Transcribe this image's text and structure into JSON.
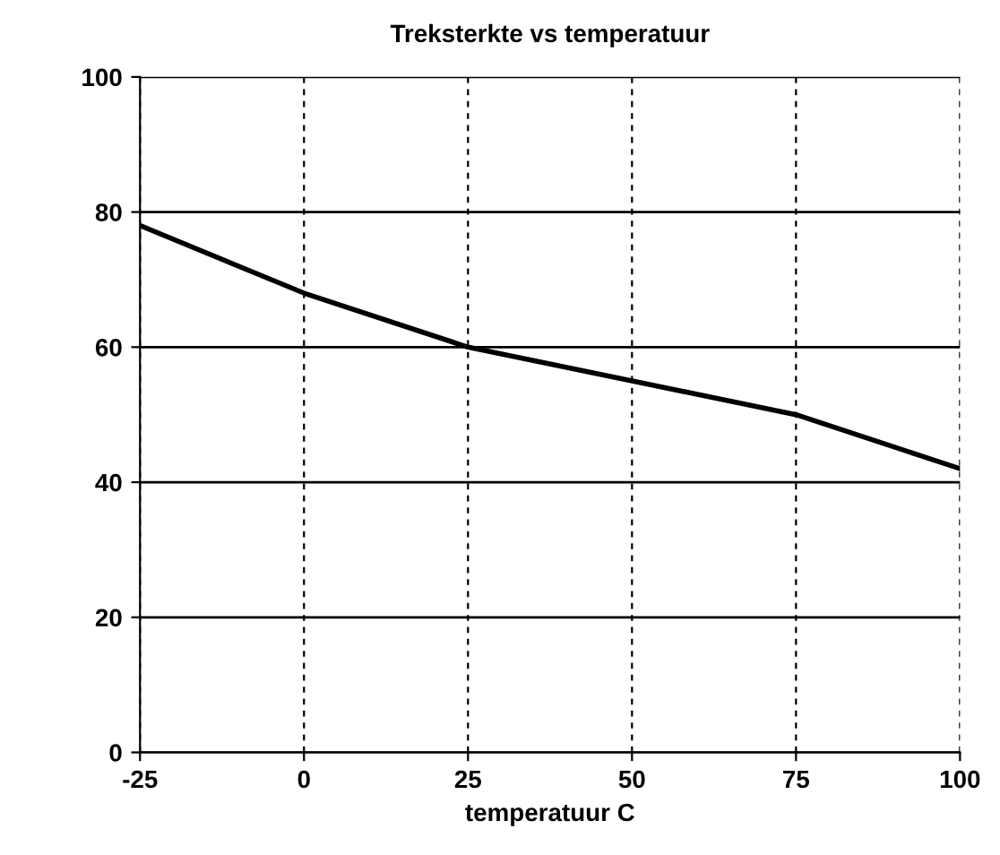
{
  "chart_data": {
    "type": "line",
    "title": "Treksterkte vs temperatuur",
    "xlabel": "temperatuur C",
    "x": [
      -25,
      0,
      25,
      50,
      75,
      100
    ],
    "series": [
      {
        "color": "#000000",
        "values": [
          78,
          68,
          60,
          55,
          50,
          42
        ]
      }
    ],
    "xlim": [
      -25,
      100
    ],
    "xticks": [
      -25,
      0,
      25,
      50,
      75,
      100
    ],
    "ylim": [
      0,
      100
    ],
    "yticks": [
      0,
      20,
      40,
      60,
      80,
      100
    ],
    "grid": true,
    "marker": "none",
    "line_style": "solid",
    "legend": false
  }
}
